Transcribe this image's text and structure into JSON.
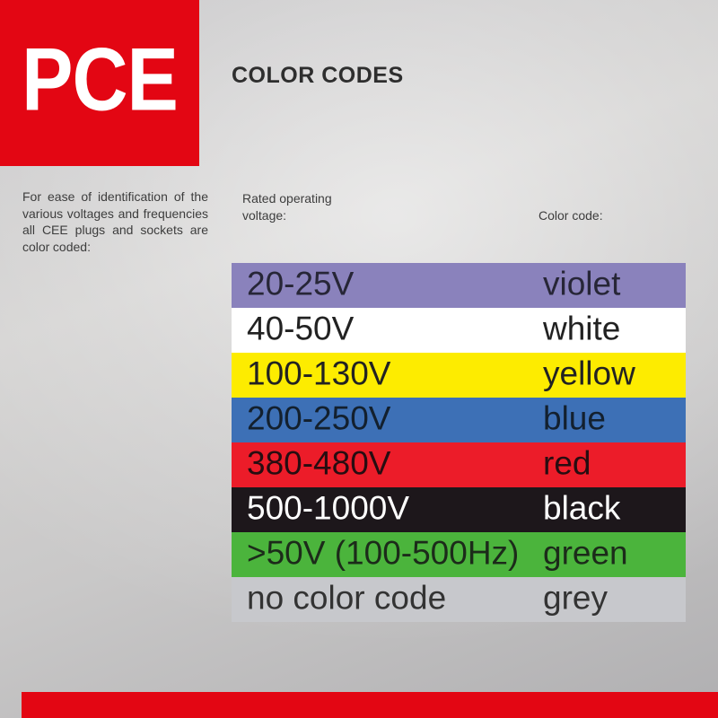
{
  "brand": {
    "logo_text": "PCE",
    "red": "#e30613",
    "logo_text_color": "#ffffff"
  },
  "header": {
    "title": "COLOR CODES",
    "title_color": "#2e2e2e"
  },
  "intro": {
    "text": "For ease of identification of the various voltages and frequencies all CEE plugs and sockets are color coded:"
  },
  "table": {
    "voltage_header": "Rated operating voltage:",
    "color_header": "Color code:",
    "rows": [
      {
        "voltage": "20-25V",
        "color_name": "violet",
        "bg": "#8a82bc",
        "fg": "#272637"
      },
      {
        "voltage": "40-50V",
        "color_name": "white",
        "bg": "#ffffff",
        "fg": "#222222"
      },
      {
        "voltage": "100-130V",
        "color_name": "yellow",
        "bg": "#fdec00",
        "fg": "#222222"
      },
      {
        "voltage": "200-250V",
        "color_name": "blue",
        "bg": "#3d70b6",
        "fg": "#13202e"
      },
      {
        "voltage": "380-480V",
        "color_name": "red",
        "bg": "#ec1c29",
        "fg": "#270d11"
      },
      {
        "voltage": "500-1000V",
        "color_name": "black",
        "bg": "#1d171b",
        "fg": "#ffffff"
      },
      {
        "voltage": ">50V (100-500Hz)",
        "color_name": "green",
        "bg": "#4bb43c",
        "fg": "#1c2b1a"
      },
      {
        "voltage": "no color code",
        "color_name": "grey",
        "bg": "#c7c8cc",
        "fg": "#333333"
      }
    ]
  },
  "footer": {
    "bar_color": "#e30613"
  }
}
